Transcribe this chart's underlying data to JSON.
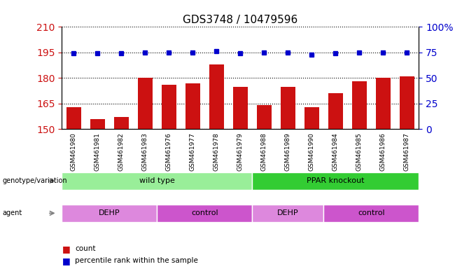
{
  "title": "GDS3748 / 10479596",
  "samples": [
    "GSM461980",
    "GSM461981",
    "GSM461982",
    "GSM461983",
    "GSM461976",
    "GSM461977",
    "GSM461978",
    "GSM461979",
    "GSM461988",
    "GSM461989",
    "GSM461990",
    "GSM461984",
    "GSM461985",
    "GSM461986",
    "GSM461987"
  ],
  "bar_values": [
    163,
    156,
    157,
    180,
    176,
    177,
    188,
    175,
    164,
    175,
    163,
    171,
    178,
    180,
    181
  ],
  "percentile_values": [
    74,
    74,
    74,
    75,
    75,
    75,
    76,
    74,
    75,
    75,
    73,
    74,
    75,
    75,
    75
  ],
  "ylim_left": [
    150,
    210
  ],
  "ylim_right": [
    0,
    100
  ],
  "yticks_left": [
    150,
    165,
    180,
    195,
    210
  ],
  "yticks_right": [
    0,
    25,
    50,
    75,
    100
  ],
  "bar_color": "#cc1111",
  "dot_color": "#0000cc",
  "background_color": "#ffffff",
  "plot_bg_color": "#ffffff",
  "genotype_groups": [
    {
      "label": "wild type",
      "start": 0,
      "end": 8,
      "color": "#99ee99"
    },
    {
      "label": "PPAR knockout",
      "start": 8,
      "end": 15,
      "color": "#33cc33"
    }
  ],
  "agent_groups": [
    {
      "label": "DEHP",
      "start": 0,
      "end": 4,
      "color": "#dd88dd"
    },
    {
      "label": "control",
      "start": 4,
      "end": 8,
      "color": "#cc55cc"
    },
    {
      "label": "DEHP",
      "start": 8,
      "end": 11,
      "color": "#dd88dd"
    },
    {
      "label": "control",
      "start": 11,
      "end": 15,
      "color": "#cc55cc"
    }
  ],
  "legend_items": [
    {
      "label": "count",
      "color": "#cc1111"
    },
    {
      "label": "percentile rank within the sample",
      "color": "#0000cc"
    }
  ]
}
